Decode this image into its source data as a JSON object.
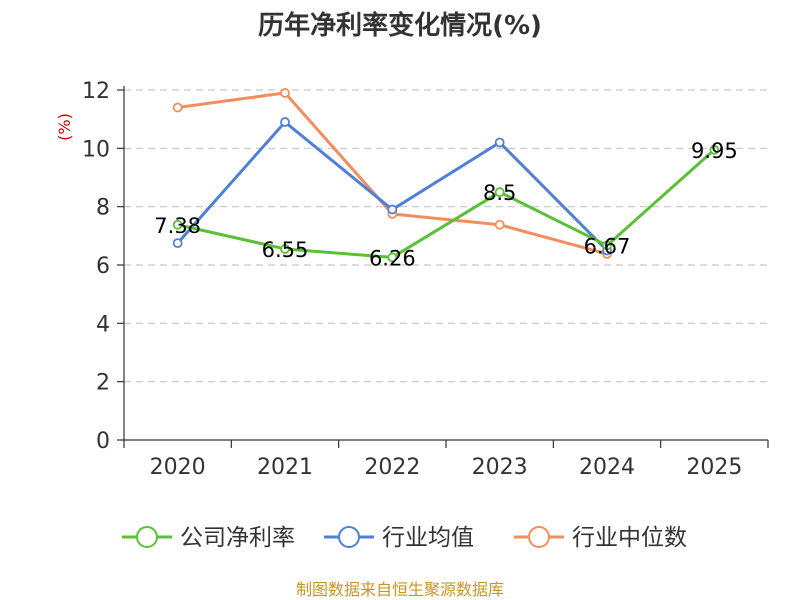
{
  "chart_data": {
    "type": "line",
    "title": "历年净利率变化情况(%)",
    "ylabel": "(%)",
    "categories": [
      "2020",
      "2021",
      "2022",
      "2023",
      "2024",
      "2025"
    ],
    "ylim": [
      0,
      12
    ],
    "yticks": [
      0,
      2,
      4,
      6,
      8,
      10,
      12
    ],
    "grid": true,
    "legend_position": "bottom",
    "series": [
      {
        "name": "公司净利率",
        "color": "#5ac036",
        "values": [
          7.38,
          6.55,
          6.26,
          8.5,
          6.67,
          9.95
        ],
        "labels": [
          "7.38",
          "6.55",
          "6.26",
          "8.5",
          "6.67",
          "9.95"
        ]
      },
      {
        "name": "行业均值",
        "color": "#4f80d8",
        "values": [
          6.75,
          10.9,
          7.9,
          10.2,
          6.5,
          null
        ]
      },
      {
        "name": "行业中位数",
        "color": "#f48d5c",
        "values": [
          11.4,
          11.9,
          7.75,
          7.38,
          6.38,
          null
        ]
      }
    ],
    "source": "制图数据来自恒生聚源数据库"
  }
}
